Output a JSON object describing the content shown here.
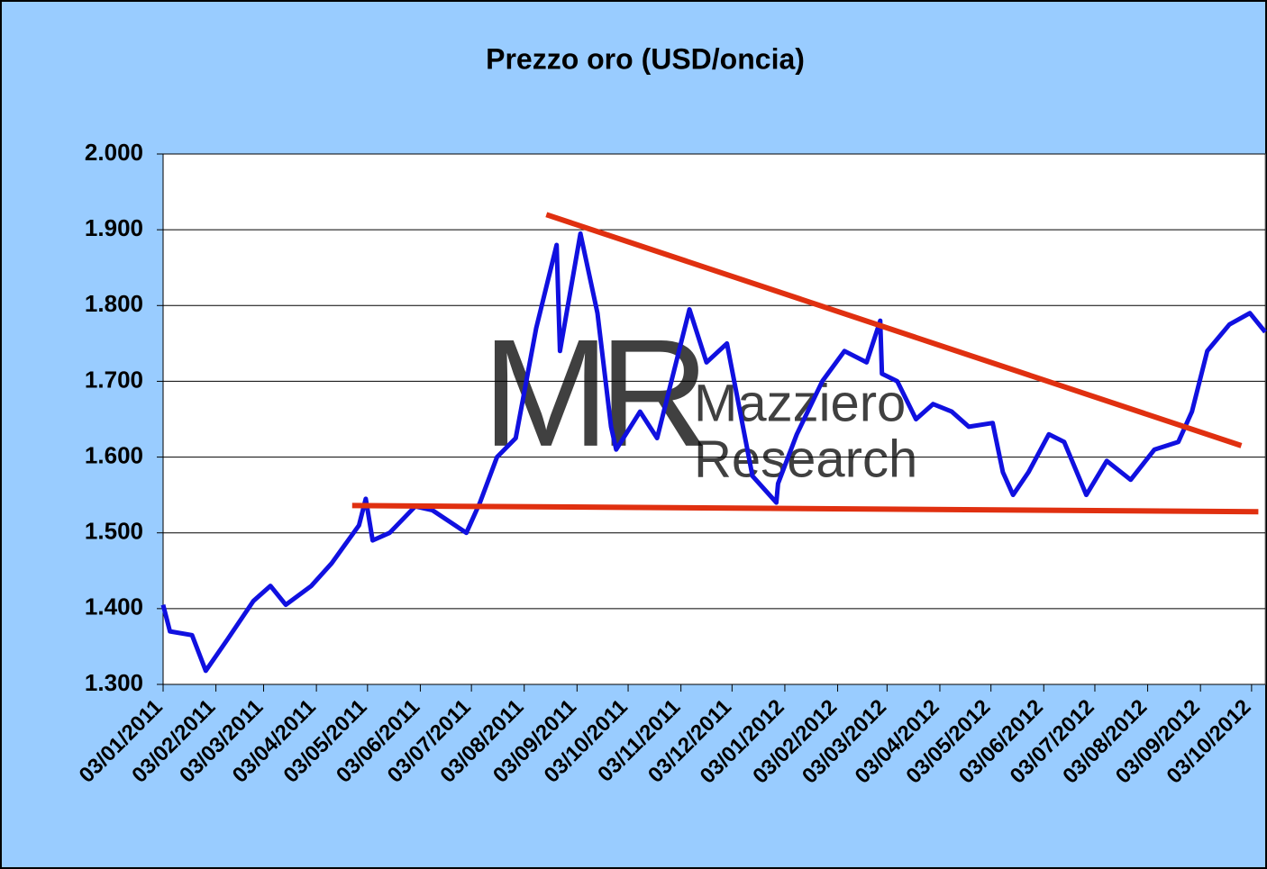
{
  "chart_data": {
    "type": "line",
    "title": "Prezzo oro (USD/oncia)",
    "watermark": {
      "logo": "MR",
      "lines": [
        "Mazziero",
        "Research"
      ]
    },
    "xlim": [
      "2011-01-03",
      "2012-10-11"
    ],
    "xticks": [
      {
        "value": "2011-01-03",
        "label": "03/01/2011"
      },
      {
        "value": "2011-02-03",
        "label": "03/02/2011"
      },
      {
        "value": "2011-03-03",
        "label": "03/03/2011"
      },
      {
        "value": "2011-04-03",
        "label": "03/04/2011"
      },
      {
        "value": "2011-05-03",
        "label": "03/05/2011"
      },
      {
        "value": "2011-06-03",
        "label": "03/06/2011"
      },
      {
        "value": "2011-07-03",
        "label": "03/07/2011"
      },
      {
        "value": "2011-08-03",
        "label": "03/08/2011"
      },
      {
        "value": "2011-09-03",
        "label": "03/09/2011"
      },
      {
        "value": "2011-10-03",
        "label": "03/10/2011"
      },
      {
        "value": "2011-11-03",
        "label": "03/11/2011"
      },
      {
        "value": "2011-12-03",
        "label": "03/12/2011"
      },
      {
        "value": "2012-01-03",
        "label": "03/01/2012"
      },
      {
        "value": "2012-02-03",
        "label": "03/02/2012"
      },
      {
        "value": "2012-03-03",
        "label": "03/03/2012"
      },
      {
        "value": "2012-04-03",
        "label": "03/04/2012"
      },
      {
        "value": "2012-05-03",
        "label": "03/05/2012"
      },
      {
        "value": "2012-06-03",
        "label": "03/06/2012"
      },
      {
        "value": "2012-07-03",
        "label": "03/07/2012"
      },
      {
        "value": "2012-08-03",
        "label": "03/08/2012"
      },
      {
        "value": "2012-09-03",
        "label": "03/09/2012"
      },
      {
        "value": "2012-10-03",
        "label": "03/10/2012"
      }
    ],
    "ylim": [
      1300,
      2000
    ],
    "yticks": [
      {
        "value": 1300,
        "label": "1.300"
      },
      {
        "value": 1400,
        "label": "1.400"
      },
      {
        "value": 1500,
        "label": "1.500"
      },
      {
        "value": 1600,
        "label": "1.600"
      },
      {
        "value": 1700,
        "label": "1.700"
      },
      {
        "value": 1800,
        "label": "1.800"
      },
      {
        "value": 1900,
        "label": "1.900"
      },
      {
        "value": 2000,
        "label": "2.000"
      }
    ],
    "grid": true,
    "series": [
      {
        "color": "#1010e0",
        "x": [
          "2011-01-03",
          "2011-01-07",
          "2011-01-20",
          "2011-01-28",
          "2011-02-10",
          "2011-02-25",
          "2011-03-07",
          "2011-03-16",
          "2011-03-31",
          "2011-04-12",
          "2011-04-28",
          "2011-05-02",
          "2011-05-06",
          "2011-05-16",
          "2011-05-31",
          "2011-06-10",
          "2011-06-30",
          "2011-07-08",
          "2011-07-18",
          "2011-07-29",
          "2011-08-10",
          "2011-08-22",
          "2011-08-24",
          "2011-09-05",
          "2011-09-15",
          "2011-09-23",
          "2011-09-26",
          "2011-10-10",
          "2011-10-20",
          "2011-11-08",
          "2011-11-18",
          "2011-11-30",
          "2011-12-15",
          "2011-12-29",
          "2011-12-30",
          "2012-01-10",
          "2012-01-25",
          "2012-02-07",
          "2012-02-20",
          "2012-02-28",
          "2012-02-29",
          "2012-03-09",
          "2012-03-20",
          "2012-03-30",
          "2012-04-10",
          "2012-04-20",
          "2012-05-04",
          "2012-05-10",
          "2012-05-16",
          "2012-05-25",
          "2012-06-06",
          "2012-06-15",
          "2012-06-28",
          "2012-07-10",
          "2012-07-24",
          "2012-08-07",
          "2012-08-21",
          "2012-08-29",
          "2012-09-07",
          "2012-09-20",
          "2012-10-02",
          "2012-10-11"
        ],
        "values": [
          1405,
          1370,
          1365,
          1318,
          1360,
          1410,
          1430,
          1405,
          1430,
          1460,
          1510,
          1545,
          1490,
          1500,
          1535,
          1530,
          1500,
          1540,
          1600,
          1625,
          1770,
          1880,
          1740,
          1895,
          1790,
          1640,
          1610,
          1660,
          1625,
          1795,
          1725,
          1750,
          1575,
          1540,
          1565,
          1630,
          1700,
          1740,
          1725,
          1780,
          1710,
          1700,
          1650,
          1670,
          1660,
          1640,
          1645,
          1580,
          1550,
          1580,
          1630,
          1620,
          1550,
          1595,
          1570,
          1610,
          1620,
          1660,
          1740,
          1775,
          1790,
          1765
        ]
      }
    ],
    "trendlines": [
      {
        "color": "#e03010",
        "x": [
          "2011-08-16",
          "2012-09-27"
        ],
        "values": [
          1920,
          1615
        ]
      },
      {
        "color": "#e03010",
        "x": [
          "2011-04-24",
          "2012-10-07"
        ],
        "values": [
          1536,
          1528
        ]
      }
    ]
  }
}
